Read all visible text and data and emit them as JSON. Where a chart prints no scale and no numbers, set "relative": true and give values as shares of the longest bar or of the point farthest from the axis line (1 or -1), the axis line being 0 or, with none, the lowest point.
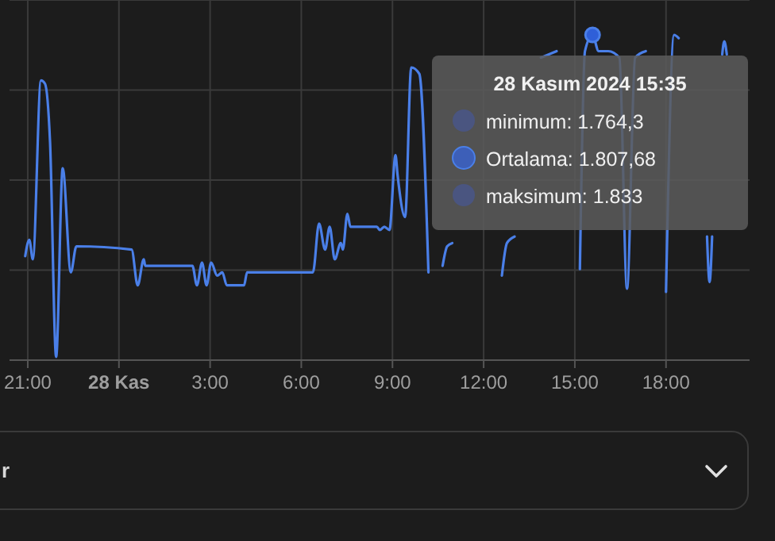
{
  "chart_data": {
    "type": "line",
    "relative": true,
    "grid": true,
    "x": [
      "2024-11-27T20:55",
      "2024-11-27T21:03",
      "2024-11-27T21:10",
      "2024-11-27T21:26",
      "2024-11-27T21:34",
      "2024-11-27T21:44",
      "2024-11-27T21:56",
      "2024-11-27T22:09",
      "2024-11-27T22:25",
      "2024-11-27T22:36",
      "2024-11-28T00:25",
      "2024-11-28T00:37",
      "2024-11-28T00:49",
      "2024-11-28T00:52",
      "2024-11-28T02:25",
      "2024-11-28T02:34",
      "2024-11-28T02:44",
      "2024-11-28T02:53",
      "2024-11-28T03:02",
      "2024-11-28T03:14",
      "2024-11-28T03:24",
      "2024-11-28T03:33",
      "2024-11-28T04:07",
      "2024-11-28T04:13",
      "2024-11-28T06:23",
      "2024-11-28T06:35",
      "2024-11-28T06:47",
      "2024-11-28T06:56",
      "2024-11-28T07:06",
      "2024-11-28T07:18",
      "2024-11-28T07:22",
      "2024-11-28T07:31",
      "2024-11-28T07:37",
      "2024-11-28T08:29",
      "2024-11-28T08:35",
      "2024-11-28T08:44",
      "2024-11-28T08:54",
      "2024-11-28T09:06",
      "2024-11-28T09:10",
      "2024-11-28T09:25",
      "2024-11-28T09:37",
      "2024-11-28T09:53",
      "2024-11-28T10:11",
      "2024-11-28T10:23",
      "2024-11-28T10:39",
      "2024-11-28T10:48",
      "2024-11-28T10:58",
      "2024-11-28T11:28",
      "2024-11-28T11:59",
      "2024-11-28T12:27",
      "2024-11-28T12:36",
      "2024-11-28T12:46",
      "2024-11-28T13:01",
      "2024-11-28T13:29",
      "2024-11-28T13:53",
      "2024-11-28T14:24",
      "2024-11-28T14:55",
      "2024-11-28T15:10",
      "2024-11-28T15:20",
      "2024-11-28T15:35",
      "2024-11-28T15:47",
      "2024-11-28T16:06",
      "2024-11-28T16:28",
      "2024-11-28T16:43",
      "2024-11-28T16:59",
      "2024-11-28T17:20",
      "2024-11-28T17:38",
      "2024-11-28T18:00",
      "2024-11-28T18:16",
      "2024-11-28T18:25",
      "2024-11-28T18:37",
      "2024-11-28T18:53",
      "2024-11-28T19:08",
      "2024-11-28T19:21",
      "2024-11-28T19:26",
      "2024-11-28T19:31",
      "2024-11-28T19:39",
      "2024-11-28T19:51",
      "2024-11-28T19:55",
      "2024-11-28T20:00"
    ],
    "xlim": [
      "2024-11-27T20:24",
      "2024-11-28T20:45"
    ],
    "xticks": [
      {
        "value": "2024-11-27T21:00",
        "label": "21:00"
      },
      {
        "value": "2024-11-28T00:00",
        "label": "28 Kas"
      },
      {
        "value": "2024-11-28T03:00",
        "label": "3:00"
      },
      {
        "value": "2024-11-28T06:00",
        "label": "6:00"
      },
      {
        "value": "2024-11-28T09:00",
        "label": "9:00"
      },
      {
        "value": "2024-11-28T12:00",
        "label": "12:00"
      },
      {
        "value": "2024-11-28T15:00",
        "label": "15:00"
      },
      {
        "value": "2024-11-28T18:00",
        "label": "18:00"
      }
    ],
    "series": [
      {
        "color": "#4a7fe8",
        "values": [
          0.32,
          0.37,
          0.31,
          0.86,
          0.85,
          0.67,
          0.01,
          0.59,
          0.27,
          0.35,
          0.34,
          0.23,
          0.31,
          0.29,
          0.29,
          0.23,
          0.3,
          0.23,
          0.3,
          0.26,
          0.27,
          0.23,
          0.23,
          0.27,
          0.27,
          0.42,
          0.34,
          0.41,
          0.31,
          0.36,
          0.34,
          0.45,
          0.41,
          0.41,
          0.4,
          0.41,
          0.4,
          0.63,
          0.57,
          0.44,
          0.9,
          0.88,
          0.27,
          null,
          0.29,
          0.35,
          0.36,
          null,
          null,
          null,
          0.26,
          0.36,
          0.38,
          null,
          0.93,
          0.95,
          null,
          0.28,
          0.95,
          1,
          0.95,
          0.95,
          0.93,
          0.22,
          0.93,
          0.95,
          null,
          0.21,
          1,
          0.99,
          null,
          null,
          null,
          0.38,
          0.24,
          0.38,
          null,
          0.94,
          0.98,
          0.94
        ]
      }
    ],
    "annotations": [
      {
        "text": "28 Kasım 2024 15:35",
        "x": "2024-11-28T15:35",
        "y": 1
      },
      "minimum: 1.764,3",
      "Ortalama: 1.807,68",
      "maksimum: 1.833",
      "r"
    ]
  }
}
